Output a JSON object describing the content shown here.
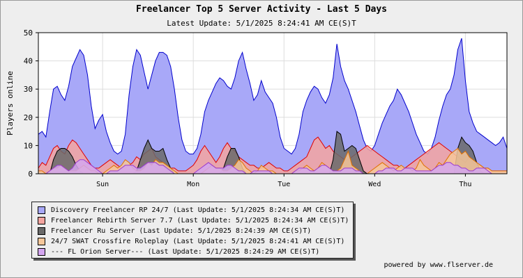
{
  "chart_data": {
    "type": "area",
    "title": "Freelancer Top 5 Server Activity - Last 5 Days",
    "subtitle": "Latest Update: 5/1/2025 8:24:41 AM CE(S)T",
    "ylabel": "Players online",
    "ylim": [
      0,
      50
    ],
    "yticks": [
      "0",
      "10",
      "20",
      "30",
      "40",
      "50"
    ],
    "xlim_hours": [
      0,
      124
    ],
    "x_ticks": [
      {
        "label": "Sun",
        "hour": 17
      },
      {
        "label": "Mon",
        "hour": 41
      },
      {
        "label": "Tue",
        "hour": 65
      },
      {
        "label": "Wed",
        "hour": 89
      },
      {
        "label": "Thu",
        "hour": 113
      }
    ],
    "grid": true,
    "legend_position": "bottom-left",
    "series": [
      {
        "name": "Discovery Freelancer RP 24/7 (Last Update: 5/1/2025 8:24:34 AM CE(S)T)",
        "fill": "#a8a8f8",
        "stroke": "#0000cc",
        "x": [
          0,
          1,
          2,
          3,
          4,
          5,
          6,
          7,
          8,
          9,
          10,
          11,
          12,
          13,
          14,
          15,
          16,
          17,
          18,
          19,
          20,
          21,
          22,
          23,
          24,
          25,
          26,
          27,
          28,
          29,
          30,
          31,
          32,
          33,
          34,
          35,
          36,
          37,
          38,
          39,
          40,
          41,
          42,
          43,
          44,
          45,
          46,
          47,
          48,
          49,
          50,
          51,
          52,
          53,
          54,
          55,
          56,
          57,
          58,
          59,
          60,
          61,
          62,
          63,
          64,
          65,
          66,
          67,
          68,
          69,
          70,
          71,
          72,
          73,
          74,
          75,
          76,
          77,
          78,
          79,
          80,
          81,
          82,
          83,
          84,
          85,
          86,
          87,
          88,
          89,
          90,
          91,
          92,
          93,
          94,
          95,
          96,
          97,
          98,
          99,
          100,
          101,
          102,
          103,
          104,
          105,
          106,
          107,
          108,
          109,
          110,
          111,
          112,
          113,
          114,
          115,
          116,
          117,
          118,
          119,
          120,
          121,
          122,
          123,
          124
        ],
        "values": [
          14,
          15,
          13,
          22,
          30,
          31,
          28,
          26,
          31,
          38,
          41,
          44,
          42,
          35,
          24,
          16,
          19,
          21,
          15,
          11,
          8,
          7,
          8,
          14,
          28,
          38,
          44,
          42,
          36,
          30,
          35,
          40,
          43,
          43,
          42,
          38,
          30,
          20,
          12,
          8,
          7,
          7,
          9,
          14,
          22,
          26,
          29,
          32,
          34,
          33,
          31,
          30,
          34,
          40,
          43,
          37,
          32,
          26,
          28,
          33,
          29,
          27,
          25,
          20,
          13,
          9,
          8,
          7,
          9,
          14,
          22,
          26,
          29,
          31,
          30,
          27,
          25,
          28,
          34,
          46,
          38,
          33,
          30,
          26,
          22,
          17,
          12,
          9,
          8,
          10,
          14,
          18,
          21,
          24,
          26,
          30,
          28,
          25,
          22,
          18,
          14,
          11,
          8,
          7,
          9,
          13,
          19,
          24,
          28,
          30,
          35,
          44,
          48,
          33,
          22,
          18,
          15,
          14,
          13,
          12,
          11,
          10,
          11,
          13,
          9
        ],
        "line_width": 1
      },
      {
        "name": "Freelancer Rebirth Server 7.7 (Last Update: 5/1/2025 8:24:34 AM CE(S)T)",
        "fill": "#f4a5a0",
        "stroke": "#e00000",
        "x": [
          0,
          1,
          2,
          3,
          4,
          5,
          6,
          7,
          8,
          9,
          10,
          11,
          12,
          13,
          14,
          15,
          16,
          17,
          18,
          19,
          20,
          21,
          22,
          23,
          24,
          25,
          26,
          27,
          28,
          29,
          30,
          31,
          32,
          33,
          34,
          35,
          36,
          37,
          38,
          39,
          40,
          41,
          42,
          43,
          44,
          45,
          46,
          47,
          48,
          49,
          50,
          51,
          52,
          53,
          54,
          55,
          56,
          57,
          58,
          59,
          60,
          61,
          62,
          63,
          64,
          65,
          66,
          67,
          68,
          69,
          70,
          71,
          72,
          73,
          74,
          75,
          76,
          77,
          78,
          79,
          80,
          81,
          82,
          83,
          84,
          85,
          86,
          87,
          88,
          89,
          90,
          91,
          92,
          93,
          94,
          95,
          96,
          97,
          98,
          99,
          100,
          101,
          102,
          103,
          104,
          105,
          106,
          107,
          108,
          109,
          110,
          111,
          112,
          113,
          114,
          115,
          116,
          117,
          118,
          119,
          120,
          121,
          122,
          123,
          124
        ],
        "values": [
          2,
          4,
          3,
          6,
          9,
          10,
          8,
          7,
          10,
          12,
          11,
          9,
          7,
          5,
          3,
          2,
          2,
          3,
          4,
          5,
          4,
          3,
          2,
          2,
          3,
          4,
          6,
          5,
          7,
          8,
          9,
          6,
          5,
          4,
          3,
          2,
          2,
          1,
          1,
          1,
          2,
          3,
          5,
          8,
          10,
          8,
          6,
          4,
          6,
          9,
          11,
          9,
          8,
          6,
          5,
          4,
          3,
          3,
          2,
          2,
          3,
          4,
          3,
          2,
          2,
          1,
          1,
          2,
          3,
          4,
          5,
          6,
          9,
          12,
          13,
          11,
          9,
          10,
          8,
          7,
          6,
          5,
          5,
          6,
          7,
          8,
          9,
          10,
          9,
          8,
          7,
          6,
          5,
          4,
          3,
          3,
          2,
          2,
          3,
          4,
          5,
          6,
          7,
          8,
          9,
          10,
          11,
          10,
          9,
          8,
          7,
          6,
          5,
          4,
          6,
          4,
          3,
          3,
          2,
          2,
          1,
          1,
          1,
          1,
          1
        ],
        "line_width": 1
      },
      {
        "name": "Freelancer Ru Server (Last Update: 5/1/2025 8:24:39 AM CE(S)T)",
        "fill": "#6a6a6a",
        "stroke": "#000000",
        "x": [
          0,
          1,
          2,
          3,
          4,
          5,
          6,
          7,
          8,
          9,
          10,
          11,
          12,
          13,
          14,
          15,
          16,
          17,
          18,
          19,
          20,
          21,
          22,
          23,
          24,
          25,
          26,
          27,
          28,
          29,
          30,
          31,
          32,
          33,
          34,
          35,
          36,
          37,
          38,
          39,
          40,
          41,
          42,
          43,
          44,
          45,
          46,
          47,
          48,
          49,
          50,
          51,
          52,
          53,
          54,
          55,
          56,
          57,
          58,
          59,
          60,
          61,
          62,
          63,
          64,
          65,
          66,
          67,
          68,
          69,
          70,
          71,
          72,
          73,
          74,
          75,
          76,
          77,
          78,
          79,
          80,
          81,
          82,
          83,
          84,
          85,
          86,
          87,
          88,
          89,
          90,
          91,
          92,
          93,
          94,
          95,
          96,
          97,
          98,
          99,
          100,
          101,
          102,
          103,
          104,
          105,
          106,
          107,
          108,
          109,
          110,
          111,
          112,
          113,
          114,
          115,
          116,
          117,
          118,
          119,
          120,
          121,
          122,
          123,
          124
        ],
        "values": [
          0,
          0,
          0,
          0,
          5,
          8,
          9,
          9,
          8,
          6,
          3,
          1,
          0,
          0,
          0,
          0,
          0,
          0,
          0,
          0,
          0,
          0,
          0,
          0,
          0,
          0,
          1,
          5,
          9,
          12,
          9,
          8,
          8,
          9,
          5,
          2,
          0,
          0,
          0,
          0,
          0,
          0,
          0,
          0,
          0,
          0,
          0,
          0,
          0,
          2,
          6,
          9,
          9,
          6,
          2,
          0,
          0,
          0,
          0,
          0,
          0,
          0,
          0,
          0,
          0,
          0,
          0,
          0,
          0,
          0,
          0,
          0,
          0,
          0,
          0,
          0,
          0,
          0,
          5,
          15,
          14,
          8,
          9,
          10,
          9,
          5,
          1,
          0,
          0,
          0,
          0,
          0,
          0,
          0,
          0,
          0,
          0,
          0,
          0,
          0,
          0,
          0,
          0,
          0,
          0,
          0,
          0,
          0,
          0,
          0,
          0,
          9,
          13,
          11,
          10,
          8,
          4,
          1,
          0,
          0,
          0,
          0,
          0,
          0,
          0
        ],
        "line_width": 1
      },
      {
        "name": "24/7 SWAT Crossfire Roleplay (Last Update: 5/1/2025 8:24:41 AM CE(S)T)",
        "fill": "#f6c79a",
        "stroke": "#e07000",
        "x": [
          0,
          1,
          2,
          3,
          4,
          5,
          6,
          7,
          8,
          9,
          10,
          11,
          12,
          13,
          14,
          15,
          16,
          17,
          18,
          19,
          20,
          21,
          22,
          23,
          24,
          25,
          26,
          27,
          28,
          29,
          30,
          31,
          32,
          33,
          34,
          35,
          36,
          37,
          38,
          39,
          40,
          41,
          42,
          43,
          44,
          45,
          46,
          47,
          48,
          49,
          50,
          51,
          52,
          53,
          54,
          55,
          56,
          57,
          58,
          59,
          60,
          61,
          62,
          63,
          64,
          65,
          66,
          67,
          68,
          69,
          70,
          71,
          72,
          73,
          74,
          75,
          76,
          77,
          78,
          79,
          80,
          81,
          82,
          83,
          84,
          85,
          86,
          87,
          88,
          89,
          90,
          91,
          92,
          93,
          94,
          95,
          96,
          97,
          98,
          99,
          100,
          101,
          102,
          103,
          104,
          105,
          106,
          107,
          108,
          109,
          110,
          111,
          112,
          113,
          114,
          115,
          116,
          117,
          118,
          119,
          120,
          121,
          122,
          123,
          124
        ],
        "values": [
          1,
          1,
          0,
          1,
          2,
          2,
          3,
          2,
          1,
          1,
          1,
          2,
          3,
          2,
          1,
          1,
          0,
          0,
          1,
          2,
          3,
          2,
          3,
          5,
          4,
          2,
          1,
          1,
          2,
          4,
          3,
          5,
          4,
          4,
          3,
          2,
          1,
          0,
          0,
          0,
          0,
          0,
          0,
          0,
          1,
          2,
          3,
          2,
          2,
          1,
          1,
          2,
          3,
          5,
          4,
          2,
          1,
          0,
          1,
          3,
          2,
          1,
          1,
          0,
          0,
          0,
          0,
          0,
          1,
          1,
          2,
          3,
          2,
          1,
          2,
          4,
          3,
          2,
          1,
          1,
          2,
          5,
          8,
          3,
          2,
          1,
          0,
          0,
          1,
          2,
          3,
          4,
          3,
          2,
          1,
          2,
          3,
          2,
          2,
          1,
          2,
          5,
          3,
          2,
          1,
          2,
          4,
          3,
          5,
          7,
          8,
          9,
          7,
          8,
          6,
          5,
          4,
          3,
          2,
          2,
          1,
          1,
          1,
          1,
          1
        ],
        "line_width": 1
      },
      {
        "name": "--- FL Orion Server--- (Last Update: 5/1/2025 8:24:29 AM CE(S)T)",
        "fill": "#d4a6f0",
        "stroke": "#9a3ad0",
        "x": [
          0,
          1,
          2,
          3,
          4,
          5,
          6,
          7,
          8,
          9,
          10,
          11,
          12,
          13,
          14,
          15,
          16,
          17,
          18,
          19,
          20,
          21,
          22,
          23,
          24,
          25,
          26,
          27,
          28,
          29,
          30,
          31,
          32,
          33,
          34,
          35,
          36,
          37,
          38,
          39,
          40,
          41,
          42,
          43,
          44,
          45,
          46,
          47,
          48,
          49,
          50,
          51,
          52,
          53,
          54,
          55,
          56,
          57,
          58,
          59,
          60,
          61,
          62,
          63,
          64,
          65,
          66,
          67,
          68,
          69,
          70,
          71,
          72,
          73,
          74,
          75,
          76,
          77,
          78,
          79,
          80,
          81,
          82,
          83,
          84,
          85,
          86,
          87,
          88,
          89,
          90,
          91,
          92,
          93,
          94,
          95,
          96,
          97,
          98,
          99,
          100,
          101,
          102,
          103,
          104,
          105,
          106,
          107,
          108,
          109,
          110,
          111,
          112,
          113,
          114,
          115,
          116,
          117,
          118,
          119,
          120,
          121,
          122,
          123,
          124
        ],
        "values": [
          0,
          0,
          0,
          1,
          2,
          3,
          3,
          2,
          1,
          2,
          4,
          5,
          5,
          4,
          3,
          2,
          1,
          0,
          0,
          1,
          1,
          1,
          2,
          3,
          3,
          3,
          2,
          2,
          3,
          4,
          4,
          4,
          3,
          3,
          2,
          1,
          0,
          0,
          0,
          0,
          0,
          0,
          1,
          2,
          3,
          4,
          3,
          2,
          2,
          2,
          3,
          3,
          2,
          1,
          1,
          0,
          0,
          1,
          1,
          1,
          1,
          1,
          0,
          0,
          0,
          0,
          0,
          0,
          1,
          2,
          2,
          2,
          1,
          1,
          2,
          3,
          3,
          2,
          1,
          1,
          1,
          2,
          2,
          2,
          1,
          1,
          0,
          0,
          0,
          0,
          1,
          1,
          2,
          2,
          2,
          1,
          1,
          2,
          2,
          2,
          1,
          1,
          1,
          1,
          1,
          2,
          3,
          3,
          4,
          4,
          3,
          3,
          2,
          2,
          1,
          1,
          2,
          2,
          2,
          1,
          0,
          0,
          0,
          0,
          0
        ],
        "line_width": 1
      }
    ]
  },
  "footer": {
    "credit": "powered by www.flserver.de"
  }
}
